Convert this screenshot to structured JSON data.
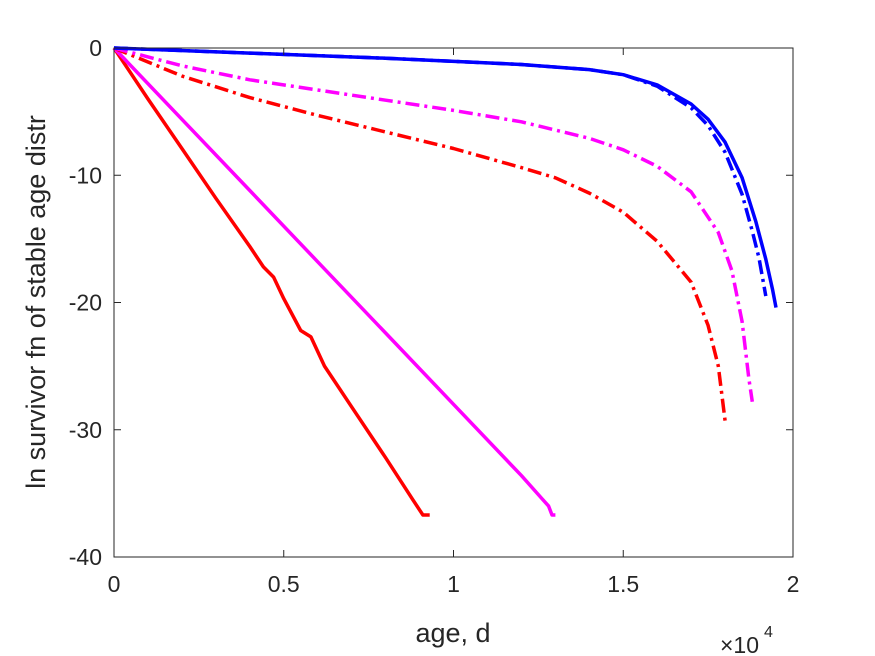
{
  "chart_data": {
    "type": "line",
    "title": "",
    "xlabel": "age, d",
    "ylabel": "ln survivor fn of stable age distr",
    "x_exponent_label": "×10",
    "x_exponent_power": "4",
    "xlim": [
      0,
      20000
    ],
    "ylim": [
      -40,
      0
    ],
    "xticks": [
      0,
      5000,
      10000,
      15000,
      20000
    ],
    "xtick_labels": [
      "0",
      "0.5",
      "1",
      "1.5",
      "2"
    ],
    "yticks": [
      0,
      -10,
      -20,
      -30,
      -40
    ],
    "ytick_labels": [
      "0",
      "-10",
      "-20",
      "-30",
      "-40"
    ],
    "grid": false,
    "box": true,
    "series": [
      {
        "color": "#ff0000",
        "style": "solid",
        "points": [
          [
            0,
            0
          ],
          [
            1000,
            -4
          ],
          [
            2000,
            -7.9
          ],
          [
            3000,
            -11.8
          ],
          [
            4000,
            -15.6
          ],
          [
            4400,
            -17.2
          ],
          [
            4700,
            -18.0
          ],
          [
            5000,
            -19.7
          ],
          [
            5500,
            -22.2
          ],
          [
            5800,
            -22.7
          ],
          [
            6200,
            -25
          ],
          [
            7000,
            -28.2
          ],
          [
            8000,
            -32.2
          ],
          [
            8800,
            -35.5
          ],
          [
            9100,
            -36.7
          ],
          [
            9300,
            -36.7
          ]
        ]
      },
      {
        "color": "#ff00ff",
        "style": "solid",
        "points": [
          [
            0,
            0
          ],
          [
            2000,
            -5.6
          ],
          [
            4000,
            -11.2
          ],
          [
            6000,
            -16.8
          ],
          [
            8000,
            -22.4
          ],
          [
            10000,
            -28
          ],
          [
            12000,
            -33.6
          ],
          [
            12600,
            -35.4
          ],
          [
            12800,
            -36
          ],
          [
            12900,
            -36.7
          ],
          [
            13000,
            -36.7
          ]
        ]
      },
      {
        "color": "#ff0000",
        "style": "dashdot",
        "points": [
          [
            0,
            0
          ],
          [
            2000,
            -2.2
          ],
          [
            4000,
            -3.9
          ],
          [
            6000,
            -5.3
          ],
          [
            8000,
            -6.6
          ],
          [
            10000,
            -7.9
          ],
          [
            12000,
            -9.4
          ],
          [
            13000,
            -10.2
          ],
          [
            14000,
            -11.4
          ],
          [
            15000,
            -12.9
          ],
          [
            16000,
            -15.2
          ],
          [
            17000,
            -18.4
          ],
          [
            17500,
            -21.8
          ],
          [
            17800,
            -25
          ],
          [
            18000,
            -29.3
          ]
        ]
      },
      {
        "color": "#ff00ff",
        "style": "dashdot",
        "points": [
          [
            0,
            0
          ],
          [
            2000,
            -1.4
          ],
          [
            4000,
            -2.5
          ],
          [
            6000,
            -3.3
          ],
          [
            8000,
            -4.1
          ],
          [
            10000,
            -4.9
          ],
          [
            12000,
            -5.8
          ],
          [
            14000,
            -7.1
          ],
          [
            15000,
            -8
          ],
          [
            16000,
            -9.3
          ],
          [
            17000,
            -11.3
          ],
          [
            17800,
            -14.5
          ],
          [
            18200,
            -17.5
          ],
          [
            18500,
            -21.5
          ],
          [
            18700,
            -26
          ],
          [
            18800,
            -27.8
          ]
        ]
      },
      {
        "color": "#0000ff",
        "style": "dashdot",
        "points": [
          [
            0,
            0
          ],
          [
            4000,
            -0.4
          ],
          [
            8000,
            -0.8
          ],
          [
            12000,
            -1.3
          ],
          [
            14000,
            -1.7
          ],
          [
            15000,
            -2.1
          ],
          [
            16000,
            -3.0
          ],
          [
            17000,
            -4.7
          ],
          [
            17500,
            -6.1
          ],
          [
            18000,
            -8.2
          ],
          [
            18500,
            -11.5
          ],
          [
            18800,
            -14.4
          ],
          [
            19000,
            -16.5
          ],
          [
            19200,
            -19.5
          ]
        ]
      },
      {
        "color": "#0000ff",
        "style": "solid",
        "points": [
          [
            0,
            0
          ],
          [
            4000,
            -0.4
          ],
          [
            8000,
            -0.8
          ],
          [
            12000,
            -1.3
          ],
          [
            14000,
            -1.7
          ],
          [
            15000,
            -2.1
          ],
          [
            16000,
            -2.9
          ],
          [
            17000,
            -4.4
          ],
          [
            17500,
            -5.6
          ],
          [
            18000,
            -7.4
          ],
          [
            18500,
            -10.2
          ],
          [
            18900,
            -13.6
          ],
          [
            19200,
            -16.6
          ],
          [
            19400,
            -19
          ],
          [
            19500,
            -20.4
          ]
        ]
      }
    ]
  }
}
